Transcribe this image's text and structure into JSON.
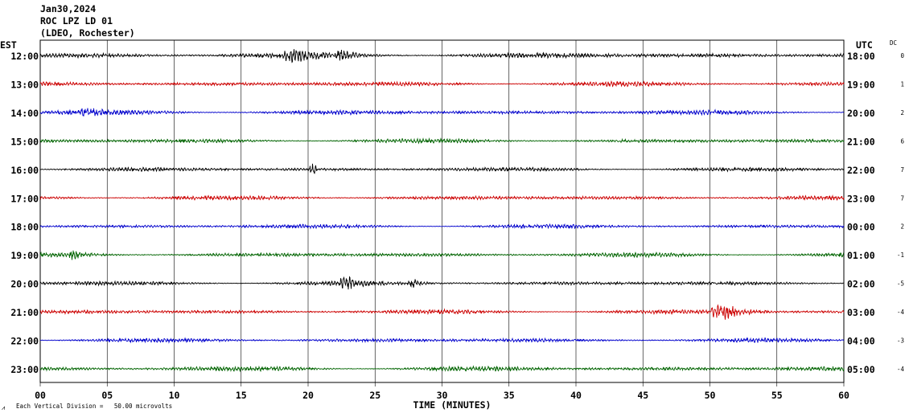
{
  "header": {
    "date": "Jan30,2024",
    "station": "ROC LPZ LD 01",
    "network": "(LDEO, Rochester)"
  },
  "left_axis_label": "EST",
  "right_axis_label": "UTC",
  "dc_label": "DC",
  "xlabel": "TIME (MINUTES)",
  "footnote": "Each Vertical Division =   50.00 microvolts",
  "colors": {
    "black": "#000000",
    "red": "#cc0000",
    "blue": "#0000cc",
    "green": "#006400"
  },
  "chart_data": {
    "type": "line",
    "title": "",
    "xlabel": "TIME (MINUTES)",
    "xlim": [
      0,
      60
    ],
    "x_ticks": [
      "00",
      "05",
      "10",
      "15",
      "20",
      "25",
      "30",
      "35",
      "40",
      "45",
      "50",
      "55",
      "60"
    ],
    "x_tick_values": [
      0,
      5,
      10,
      15,
      20,
      25,
      30,
      35,
      40,
      45,
      50,
      55,
      60
    ],
    "grid": true,
    "series": [
      {
        "est": "12:00",
        "utc": "18:00",
        "dc": "0",
        "color": "black",
        "amp": 3.2,
        "events": [
          {
            "t": 19.0,
            "a": 5,
            "d": 2.5
          },
          {
            "t": 22.5,
            "a": 4,
            "d": 1.5
          }
        ]
      },
      {
        "est": "13:00",
        "utc": "19:00",
        "dc": "1",
        "color": "red",
        "amp": 2.6,
        "events": []
      },
      {
        "est": "14:00",
        "utc": "20:00",
        "dc": "2",
        "color": "blue",
        "amp": 2.7,
        "events": [
          {
            "t": 3.5,
            "a": 4,
            "d": 1.5
          }
        ]
      },
      {
        "est": "15:00",
        "utc": "21:00",
        "dc": "6",
        "color": "green",
        "amp": 2.4,
        "events": []
      },
      {
        "est": "16:00",
        "utc": "22:00",
        "dc": "7",
        "color": "black",
        "amp": 2.3,
        "events": [
          {
            "t": 20.3,
            "a": 7,
            "d": 0.6
          }
        ]
      },
      {
        "est": "17:00",
        "utc": "23:00",
        "dc": "7",
        "color": "red",
        "amp": 2.4,
        "events": []
      },
      {
        "est": "18:00",
        "utc": "00:00",
        "dc": "2",
        "color": "blue",
        "amp": 2.3,
        "events": []
      },
      {
        "est": "19:00",
        "utc": "01:00",
        "dc": "-1",
        "color": "green",
        "amp": 2.5,
        "events": [
          {
            "t": 2.5,
            "a": 4,
            "d": 1.2
          }
        ]
      },
      {
        "est": "20:00",
        "utc": "02:00",
        "dc": "-5",
        "color": "black",
        "amp": 2.4,
        "events": [
          {
            "t": 22.8,
            "a": 6,
            "d": 1.5
          },
          {
            "t": 27.8,
            "a": 4,
            "d": 1
          }
        ]
      },
      {
        "est": "21:00",
        "utc": "03:00",
        "dc": "-4",
        "color": "red",
        "amp": 2.4,
        "events": [
          {
            "t": 51.0,
            "a": 7,
            "d": 3
          }
        ]
      },
      {
        "est": "22:00",
        "utc": "04:00",
        "dc": "-3",
        "color": "blue",
        "amp": 2.4,
        "events": []
      },
      {
        "est": "23:00",
        "utc": "05:00",
        "dc": "-4",
        "color": "green",
        "amp": 2.7,
        "events": []
      }
    ]
  }
}
